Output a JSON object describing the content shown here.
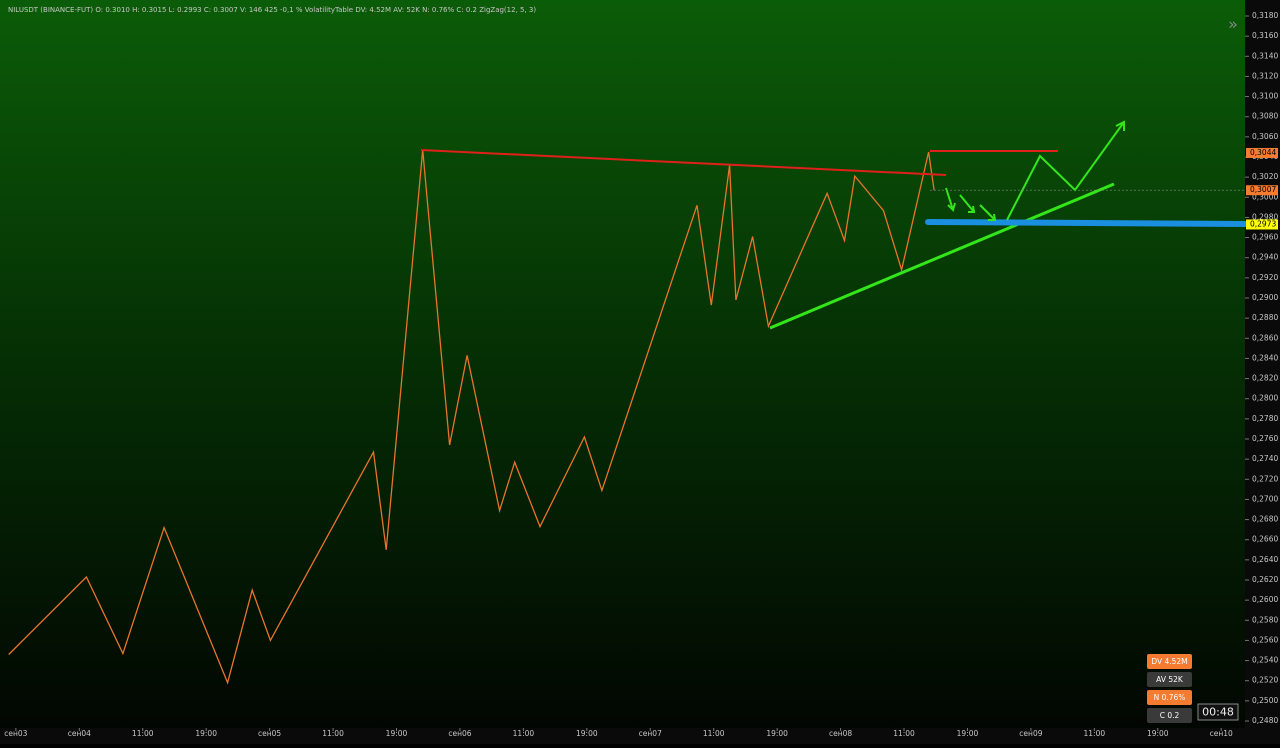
{
  "chart_data": {
    "type": "line",
    "title": "NILUSDT (BINANCE-FUT)  O: 0.3010  H: 0.3015  L: 0.2993  C: 0.3007  V: 146 425  -0,1 %  VolatilityTable  DV: 4.52M  AV: 52K  N: 0.76%  C: 0.2  ZigZag(12, 5, 3)",
    "series": [
      {
        "color": "#e8742c",
        "x": [
          -0.9,
          8.9,
          13.5,
          18.7,
          26.7,
          29.8,
          32.1,
          45.1,
          46.7,
          51.3,
          54.7,
          56.9,
          61.0,
          62.9,
          66.1,
          71.7,
          73.9,
          85.9,
          87.7,
          90.0,
          90.8,
          92.9,
          94.9,
          102.3,
          104.5,
          105.8,
          109.4,
          111.7,
          115.1,
          115.8
        ],
        "values": [
          0.2546,
          0.2623,
          0.2547,
          0.2672,
          0.2518,
          0.261,
          0.256,
          0.2747,
          0.265,
          0.3047,
          0.2754,
          0.2843,
          0.2689,
          0.2737,
          0.2673,
          0.2762,
          0.2709,
          0.2992,
          0.2893,
          0.3032,
          0.2898,
          0.2961,
          0.2872,
          0.3004,
          0.2957,
          0.3021,
          0.2987,
          0.2928,
          0.3045,
          0.3007
        ]
      }
    ],
    "xlim": [
      -2,
      155
    ],
    "ylim": [
      0.248,
      0.318
    ],
    "xticks": [
      {
        "value": 0,
        "label": "сен03"
      },
      {
        "value": 8,
        "label": "сен04"
      },
      {
        "value": 16,
        "label": "11:00"
      },
      {
        "value": 24,
        "label": "19:00"
      },
      {
        "value": 32,
        "label": "сен05"
      },
      {
        "value": 40,
        "label": "11:00"
      },
      {
        "value": 48,
        "label": "19:00"
      },
      {
        "value": 56,
        "label": "сен06"
      },
      {
        "value": 64,
        "label": "11:00"
      },
      {
        "value": 72,
        "label": "19:00"
      },
      {
        "value": 80,
        "label": "сен07"
      },
      {
        "value": 88,
        "label": "11:00"
      },
      {
        "value": 96,
        "label": "19:00"
      },
      {
        "value": 104,
        "label": "сен08"
      },
      {
        "value": 112,
        "label": "11:00"
      },
      {
        "value": 120,
        "label": "19:00"
      },
      {
        "value": 128,
        "label": "сен09"
      },
      {
        "value": 136,
        "label": "11:00"
      },
      {
        "value": 144,
        "label": "19:00"
      },
      {
        "value": 152,
        "label": "сен10"
      }
    ],
    "yticks": [
      {
        "value": 0.248,
        "label": "0,2480"
      },
      {
        "value": 0.25,
        "label": "0,2500"
      },
      {
        "value": 0.252,
        "label": "0,2520"
      },
      {
        "value": 0.254,
        "label": "0,2540"
      },
      {
        "value": 0.256,
        "label": "0,2560"
      },
      {
        "value": 0.258,
        "label": "0,2580"
      },
      {
        "value": 0.26,
        "label": "0,2600"
      },
      {
        "value": 0.262,
        "label": "0,2620"
      },
      {
        "value": 0.264,
        "label": "0,2640"
      },
      {
        "value": 0.266,
        "label": "0,2660"
      },
      {
        "value": 0.268,
        "label": "0,2680"
      },
      {
        "value": 0.27,
        "label": "0,2700"
      },
      {
        "value": 0.272,
        "label": "0,2720"
      },
      {
        "value": 0.274,
        "label": "0,2740"
      },
      {
        "value": 0.276,
        "label": "0,2760"
      },
      {
        "value": 0.278,
        "label": "0,2780"
      },
      {
        "value": 0.28,
        "label": "0,2800"
      },
      {
        "value": 0.282,
        "label": "0,2820"
      },
      {
        "value": 0.284,
        "label": "0,2840"
      },
      {
        "value": 0.286,
        "label": "0,2860"
      },
      {
        "value": 0.288,
        "label": "0,2880"
      },
      {
        "value": 0.29,
        "label": "0,2900"
      },
      {
        "value": 0.292,
        "label": "0,2920"
      },
      {
        "value": 0.294,
        "label": "0,2940"
      },
      {
        "value": 0.296,
        "label": "0,2960"
      },
      {
        "value": 0.298,
        "label": "0,2980"
      },
      {
        "value": 0.3,
        "label": "0,3000"
      },
      {
        "value": 0.302,
        "label": "0,3020"
      },
      {
        "value": 0.304,
        "label": "0,3040"
      },
      {
        "value": 0.306,
        "label": "0,3060"
      },
      {
        "value": 0.308,
        "label": "0,3080"
      },
      {
        "value": 0.31,
        "label": "0,3100"
      },
      {
        "value": 0.312,
        "label": "0,3120"
      },
      {
        "value": 0.314,
        "label": "0,3140"
      },
      {
        "value": 0.316,
        "label": "0,3160"
      },
      {
        "value": 0.318,
        "label": "0,3180"
      }
    ],
    "price_markers": [
      {
        "value": 0.3044,
        "label": "0,3044",
        "color": "#f47b30"
      },
      {
        "value": 0.3007,
        "label": "0,3007",
        "color": "#f47b30"
      },
      {
        "value": 0.2973,
        "label": "0,2973",
        "color": "#ffff00"
      }
    ],
    "info_boxes": [
      {
        "label": "DV 4.52M",
        "color": "#f47b30"
      },
      {
        "label": "AV 52K",
        "color": "#3a3a3a"
      },
      {
        "label": "N 0.76%",
        "color": "#f47b30"
      },
      {
        "label": "C 0.2",
        "color": "#3a3a3a"
      }
    ],
    "timer": "00:48"
  }
}
